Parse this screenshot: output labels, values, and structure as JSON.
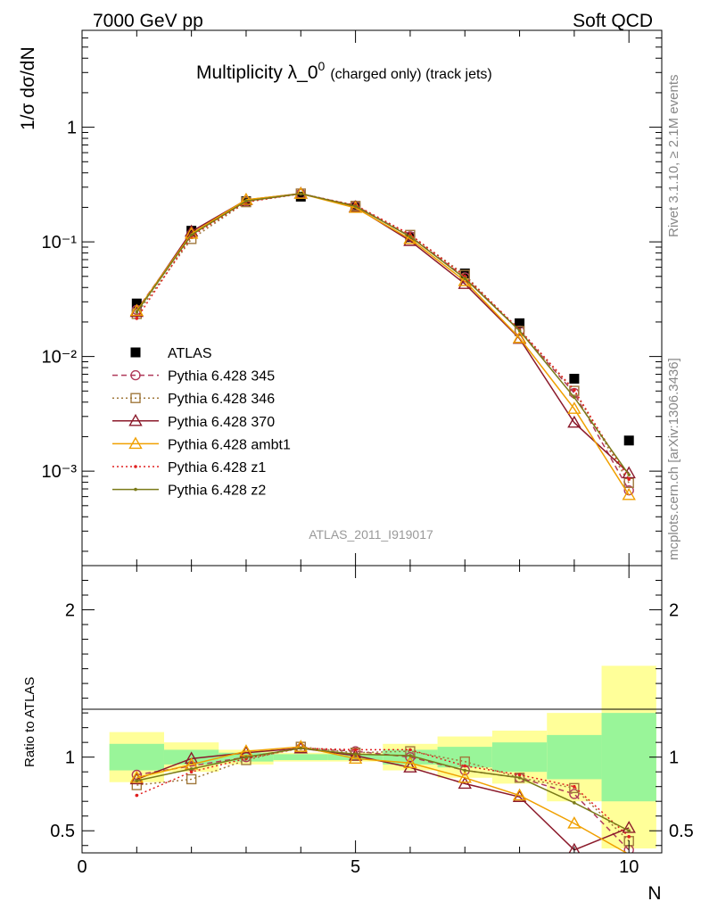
{
  "header": {
    "left": "7000 GeV pp",
    "right": "Soft QCD"
  },
  "side_labels": {
    "rivet": "Rivet 3.1.10, ≥ 2.1M events",
    "mcplots": "mcplots.cern.ch [arXiv:1306.3436]"
  },
  "chart_data": [
    {
      "type": "scatter",
      "panel": "main",
      "title_main": "Multiplicity λ_0",
      "title_sup": "0",
      "title_sub": "(charged only) (track jets)",
      "ylabel": "1/σ dσ/dN",
      "yscale": "log",
      "ylim": [
        0.00015,
        7
      ],
      "xlim": [
        0,
        10.6
      ],
      "watermark": "ATLAS_2011_I919017",
      "y_tick_labels": {
        "major": [
          "10⁻³",
          "10⁻²",
          "10⁻¹",
          "1"
        ]
      },
      "x": [
        1,
        2,
        3,
        4,
        5,
        6,
        7,
        8,
        9,
        10
      ],
      "series": [
        {
          "name": "ATLAS",
          "color": "#000000",
          "marker": "square-filled",
          "line": "none",
          "values": [
            0.029,
            0.125,
            0.226,
            0.248,
            0.2,
            0.11,
            0.053,
            0.0195,
            0.0064,
            0.00185
          ]
        },
        {
          "name": "Pythia 6.428 345",
          "color": "#b03a5a",
          "marker": "circle-open",
          "line": "dashed",
          "values": [
            0.0255,
            0.117,
            0.225,
            0.263,
            0.207,
            0.112,
            0.049,
            0.0168,
            0.0048,
            0.00068
          ]
        },
        {
          "name": "Pythia 6.428 346",
          "color": "#a0783c",
          "marker": "square-open",
          "line": "dotted",
          "values": [
            0.0235,
            0.106,
            0.222,
            0.264,
            0.206,
            0.115,
            0.0515,
            0.0167,
            0.00502,
            0.00079
          ]
        },
        {
          "name": "Pythia 6.428 370",
          "color": "#8b1a2b",
          "marker": "triangle-open",
          "line": "solid",
          "values": [
            0.0245,
            0.123,
            0.232,
            0.264,
            0.201,
            0.102,
            0.043,
            0.0143,
            0.00265,
            0.00096
          ]
        },
        {
          "name": "Pythia 6.428 ambt1",
          "color": "#f0a000",
          "marker": "triangle-open",
          "line": "solid",
          "values": [
            0.025,
            0.118,
            0.233,
            0.263,
            0.198,
            0.106,
            0.0455,
            0.0145,
            0.0035,
            0.00062
          ]
        },
        {
          "name": "Pythia 6.428 z1",
          "color": "#e02020",
          "marker": "dot",
          "line": "dotted",
          "values": [
            0.0215,
            0.112,
            0.223,
            0.262,
            0.209,
            0.116,
            0.05,
            0.0172,
            0.0051,
            0.00085
          ]
        },
        {
          "name": "Pythia 6.428 z2",
          "color": "#7a7a18",
          "marker": "dot",
          "line": "solid",
          "values": [
            0.0245,
            0.115,
            0.227,
            0.263,
            0.205,
            0.111,
            0.048,
            0.0168,
            0.0044,
            0.00093
          ]
        }
      ]
    },
    {
      "type": "line",
      "panel": "ratio",
      "ylabel": "Ratio to ATLAS",
      "xlabel": "N",
      "ylim": [
        0.35,
        2.3
      ],
      "xlim": [
        0,
        10.6
      ],
      "y_tick_labels": [
        "0.5",
        "1",
        "2"
      ],
      "x_tick_labels": [
        "0",
        "5",
        "10"
      ],
      "bands": [
        {
          "x0": 0.5,
          "x1": 1.5,
          "green": [
            0.91,
            1.09
          ],
          "yellow": [
            0.83,
            1.17
          ]
        },
        {
          "x0": 1.5,
          "x1": 2.5,
          "green": [
            0.95,
            1.05
          ],
          "yellow": [
            0.9,
            1.1
          ]
        },
        {
          "x0": 2.5,
          "x1": 3.5,
          "green": [
            0.97,
            1.03
          ],
          "yellow": [
            0.95,
            1.05
          ]
        },
        {
          "x0": 3.5,
          "x1": 4.5,
          "green": [
            0.98,
            1.02
          ],
          "yellow": [
            0.97,
            1.03
          ]
        },
        {
          "x0": 4.5,
          "x1": 5.5,
          "green": [
            0.98,
            1.02
          ],
          "yellow": [
            0.97,
            1.03
          ]
        },
        {
          "x0": 5.5,
          "x1": 6.5,
          "green": [
            0.95,
            1.05
          ],
          "yellow": [
            0.91,
            1.09
          ]
        },
        {
          "x0": 6.5,
          "x1": 7.5,
          "green": [
            0.93,
            1.07
          ],
          "yellow": [
            0.86,
            1.14
          ]
        },
        {
          "x0": 7.5,
          "x1": 8.5,
          "green": [
            0.9,
            1.1
          ],
          "yellow": [
            0.82,
            1.18
          ]
        },
        {
          "x0": 8.5,
          "x1": 9.5,
          "green": [
            0.85,
            1.15
          ],
          "yellow": [
            0.7,
            1.3
          ]
        },
        {
          "x0": 9.5,
          "x1": 10.5,
          "green": [
            0.7,
            1.3
          ],
          "yellow": [
            0.38,
            1.62
          ]
        }
      ],
      "series": [
        {
          "name": "Pythia 6.428 345",
          "color": "#b03a5a",
          "marker": "circle-open",
          "line": "dashed",
          "values": [
            0.88,
            0.94,
            1.0,
            1.06,
            1.04,
            1.0,
            0.91,
            0.86,
            0.75,
            0.37
          ]
        },
        {
          "name": "Pythia 6.428 346",
          "color": "#a0783c",
          "marker": "square-open",
          "line": "dotted",
          "values": [
            0.81,
            0.85,
            0.98,
            1.07,
            1.03,
            1.04,
            0.97,
            0.86,
            0.79,
            0.43
          ]
        },
        {
          "name": "Pythia 6.428 370",
          "color": "#8b1a2b",
          "marker": "triangle-open",
          "line": "solid",
          "values": [
            0.85,
            0.99,
            1.03,
            1.06,
            1.01,
            0.93,
            0.82,
            0.73,
            0.37,
            0.52
          ]
        },
        {
          "name": "Pythia 6.428 ambt1",
          "color": "#f0a000",
          "marker": "triangle-open",
          "line": "solid",
          "values": [
            0.86,
            0.95,
            1.04,
            1.07,
            0.99,
            0.96,
            0.86,
            0.74,
            0.55,
            0.34
          ]
        },
        {
          "name": "Pythia 6.428 z1",
          "color": "#e02020",
          "marker": "dot",
          "line": "dotted",
          "values": [
            0.74,
            0.9,
            0.99,
            1.06,
            1.05,
            1.05,
            0.94,
            0.88,
            0.8,
            0.46
          ]
        },
        {
          "name": "Pythia 6.428 z2",
          "color": "#7a7a18",
          "marker": "dot",
          "line": "solid",
          "values": [
            0.84,
            0.92,
            1.0,
            1.06,
            1.02,
            1.01,
            0.91,
            0.86,
            0.69,
            0.5
          ]
        }
      ]
    }
  ]
}
